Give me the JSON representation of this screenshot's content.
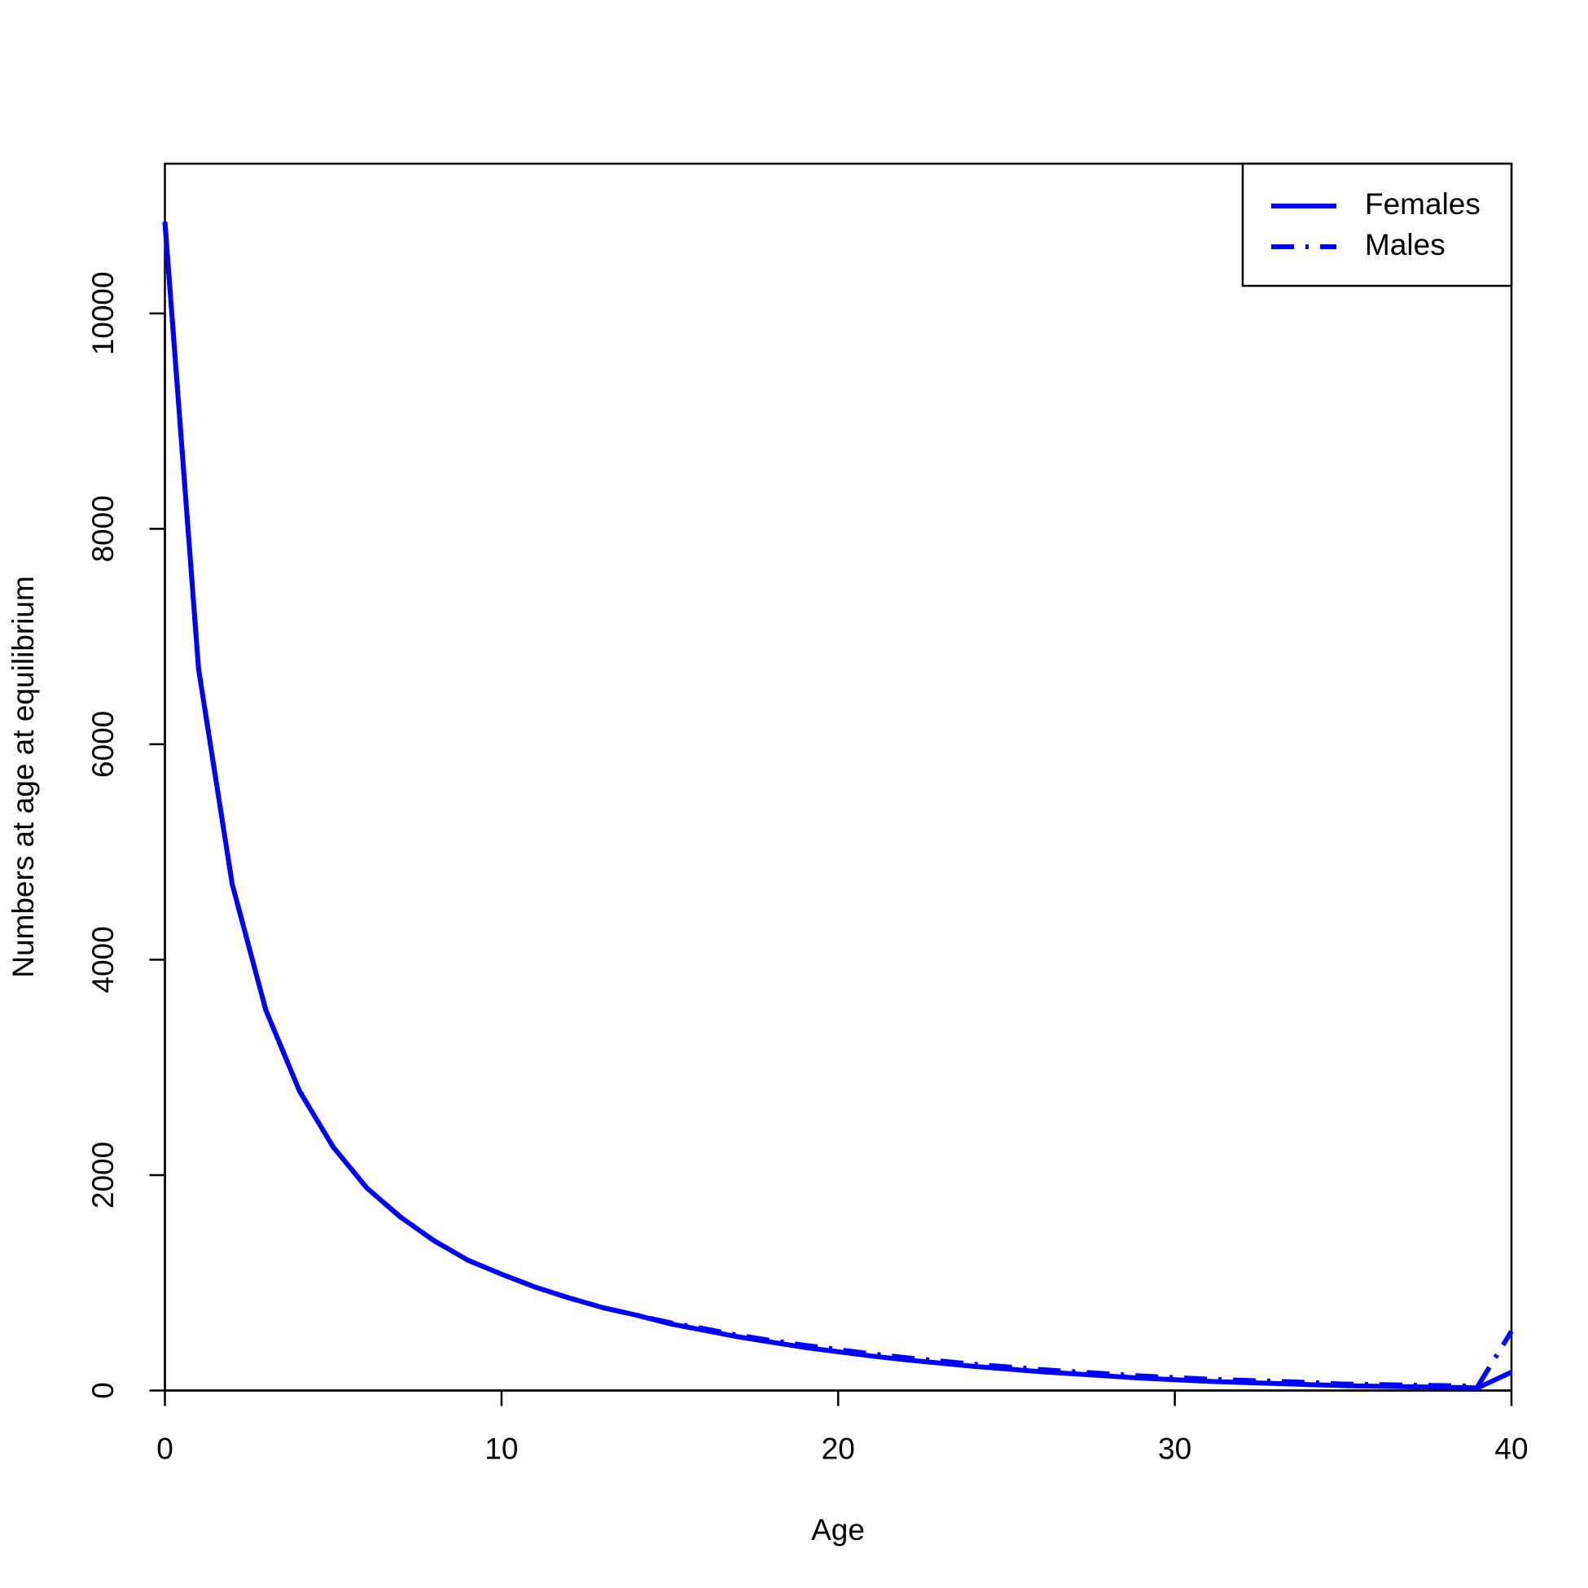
{
  "chart_data": {
    "type": "line",
    "xlabel": "Age",
    "ylabel": "Numbers at age at equilibrium",
    "x": [
      0,
      1,
      2,
      3,
      4,
      5,
      6,
      7,
      8,
      9,
      10,
      11,
      12,
      13,
      14,
      15,
      16,
      17,
      18,
      19,
      20,
      21,
      22,
      23,
      24,
      25,
      26,
      27,
      28,
      29,
      30,
      31,
      32,
      33,
      34,
      35,
      36,
      37,
      38,
      39,
      40
    ],
    "series": [
      {
        "name": "Females",
        "color": "#0000ff",
        "dash": "solid",
        "values": [
          10850,
          6700,
          4700,
          3530,
          2780,
          2260,
          1880,
          1610,
          1390,
          1210,
          1080,
          960,
          860,
          770,
          700,
          620,
          560,
          500,
          450,
          400,
          360,
          320,
          285,
          255,
          225,
          200,
          175,
          155,
          135,
          115,
          100,
          85,
          75,
          65,
          55,
          45,
          40,
          35,
          30,
          25,
          170
        ]
      },
      {
        "name": "Males",
        "color": "#0000ff",
        "dash": "dashdot",
        "values": [
          10850,
          6700,
          4700,
          3530,
          2780,
          2260,
          1880,
          1610,
          1390,
          1210,
          1080,
          960,
          860,
          770,
          700,
          630,
          575,
          515,
          465,
          420,
          380,
          340,
          305,
          275,
          245,
          220,
          195,
          175,
          155,
          135,
          120,
          105,
          95,
          85,
          75,
          60,
          55,
          50,
          45,
          40,
          550
        ]
      }
    ],
    "xlim": [
      0,
      40
    ],
    "xticks": [
      0,
      10,
      20,
      30,
      40
    ],
    "ylim": [
      0,
      11390
    ],
    "yticks": [
      0,
      2000,
      4000,
      6000,
      8000,
      10000
    ],
    "legend": "topright"
  }
}
